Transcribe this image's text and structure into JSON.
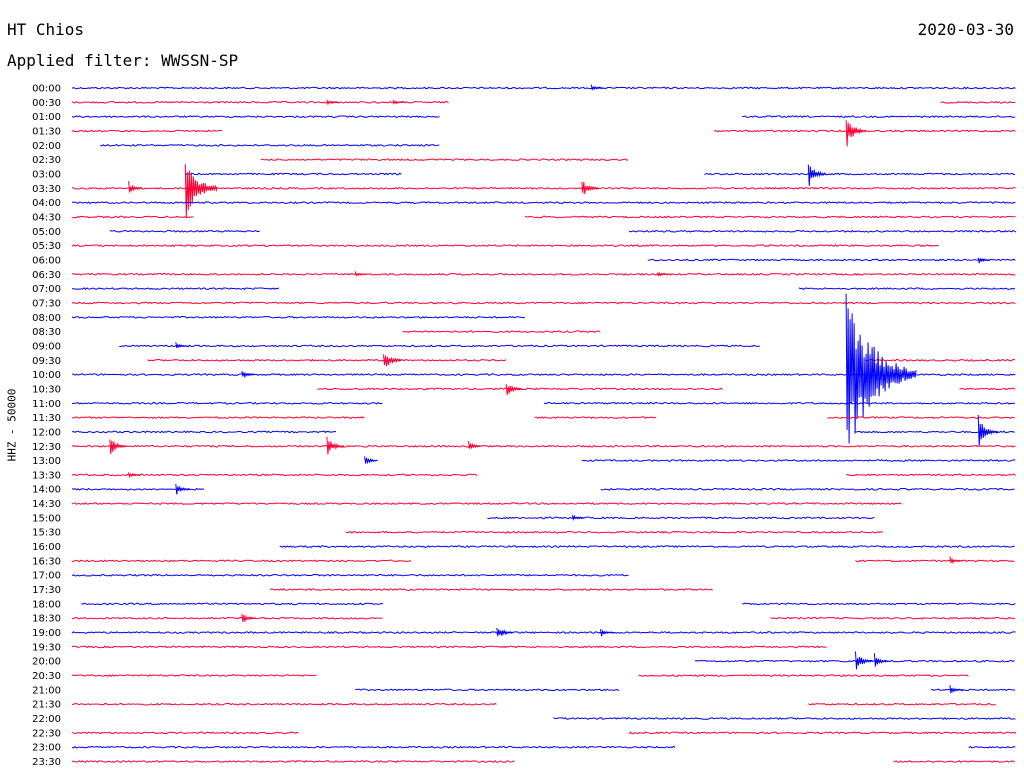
{
  "header": {
    "station": "HT Chios",
    "date": "2020-03-30",
    "filter": "Applied filter: WWSSN-SP"
  },
  "chart_data": {
    "type": "line",
    "title": "HT Chios",
    "subtitle": "Applied filter: WWSSN-SP",
    "ylabel": "HHZ - 50000",
    "xlabel": "",
    "x_range_minutes": [
      0,
      30
    ],
    "grid": false,
    "colors": {
      "even_hour": "#0000ff",
      "half_hour": "#ff0033"
    },
    "rows": [
      {
        "time": "00:00",
        "segments": [
          [
            0.0,
            1.0
          ]
        ],
        "events": [
          {
            "t": 0.55,
            "amp": 4
          }
        ]
      },
      {
        "time": "00:30",
        "segments": [
          [
            0.0,
            0.4
          ],
          [
            0.92,
            1.0
          ]
        ],
        "events": [
          {
            "t": 0.27,
            "amp": 4
          },
          {
            "t": 0.34,
            "amp": 3
          }
        ]
      },
      {
        "time": "01:00",
        "segments": [
          [
            0.0,
            0.39
          ],
          [
            0.71,
            1.0
          ]
        ],
        "events": []
      },
      {
        "time": "01:30",
        "segments": [
          [
            0.0,
            0.16
          ],
          [
            0.68,
            1.0
          ]
        ],
        "events": [
          {
            "t": 0.82,
            "amp": 18
          }
        ]
      },
      {
        "time": "02:00",
        "segments": [
          [
            0.03,
            0.39
          ]
        ],
        "events": []
      },
      {
        "time": "02:30",
        "segments": [
          [
            0.2,
            0.59
          ]
        ],
        "events": []
      },
      {
        "time": "03:00",
        "segments": [
          [
            0.12,
            0.35
          ],
          [
            0.67,
            1.0
          ]
        ],
        "events": [
          {
            "t": 0.78,
            "amp": 14
          }
        ]
      },
      {
        "time": "03:30",
        "segments": [
          [
            0.0,
            1.0
          ]
        ],
        "events": [
          {
            "t": 0.06,
            "amp": 8
          },
          {
            "t": 0.12,
            "amp": 38
          },
          {
            "t": 0.54,
            "amp": 12
          }
        ]
      },
      {
        "time": "04:00",
        "segments": [
          [
            0.0,
            1.0
          ]
        ],
        "events": []
      },
      {
        "time": "04:30",
        "segments": [
          [
            0.0,
            0.13
          ],
          [
            0.48,
            1.0
          ]
        ],
        "events": []
      },
      {
        "time": "05:00",
        "segments": [
          [
            0.04,
            0.2
          ],
          [
            0.59,
            1.0
          ]
        ],
        "events": []
      },
      {
        "time": "05:30",
        "segments": [
          [
            0.0,
            0.92
          ]
        ],
        "events": []
      },
      {
        "time": "06:00",
        "segments": [
          [
            0.61,
            1.0
          ]
        ],
        "events": [
          {
            "t": 0.96,
            "amp": 4
          }
        ]
      },
      {
        "time": "06:30",
        "segments": [
          [
            0.0,
            1.0
          ]
        ],
        "events": [
          {
            "t": 0.3,
            "amp": 3
          },
          {
            "t": 0.62,
            "amp": 3
          }
        ]
      },
      {
        "time": "07:00",
        "segments": [
          [
            0.0,
            0.22
          ],
          [
            0.77,
            1.0
          ]
        ],
        "events": []
      },
      {
        "time": "07:30",
        "segments": [
          [
            0.0,
            1.0
          ]
        ],
        "events": []
      },
      {
        "time": "08:00",
        "segments": [
          [
            0.0,
            0.48
          ]
        ],
        "events": []
      },
      {
        "time": "08:30",
        "segments": [
          [
            0.35,
            0.56
          ]
        ],
        "events": []
      },
      {
        "time": "09:00",
        "segments": [
          [
            0.05,
            0.73
          ]
        ],
        "events": [
          {
            "t": 0.11,
            "amp": 4
          }
        ]
      },
      {
        "time": "09:30",
        "segments": [
          [
            0.08,
            0.46
          ],
          [
            0.84,
            1.0
          ]
        ],
        "events": [
          {
            "t": 0.33,
            "amp": 14
          }
        ]
      },
      {
        "time": "10:00",
        "segments": [
          [
            0.0,
            1.0
          ]
        ],
        "events": [
          {
            "t": 0.18,
            "amp": 5
          },
          {
            "t": 0.82,
            "amp": 110
          }
        ]
      },
      {
        "time": "10:30",
        "segments": [
          [
            0.26,
            0.69
          ],
          [
            0.94,
            1.0
          ]
        ],
        "events": [
          {
            "t": 0.46,
            "amp": 10
          }
        ]
      },
      {
        "time": "11:00",
        "segments": [
          [
            0.0,
            0.33
          ],
          [
            0.5,
            1.0
          ]
        ],
        "events": []
      },
      {
        "time": "11:30",
        "segments": [
          [
            0.0,
            0.31
          ],
          [
            0.49,
            0.62
          ],
          [
            0.8,
            1.0
          ]
        ],
        "events": []
      },
      {
        "time": "12:00",
        "segments": [
          [
            0.0,
            0.28
          ],
          [
            0.83,
            1.0
          ]
        ],
        "events": [
          {
            "t": 0.96,
            "amp": 18
          }
        ]
      },
      {
        "time": "12:30",
        "segments": [
          [
            0.0,
            1.0
          ]
        ],
        "events": [
          {
            "t": 0.04,
            "amp": 12
          },
          {
            "t": 0.27,
            "amp": 12
          },
          {
            "t": 0.42,
            "amp": 6
          }
        ]
      },
      {
        "time": "13:00",
        "segments": [
          [
            0.54,
            1.0
          ]
        ],
        "events": [
          {
            "t": 0.31,
            "amp": 6
          }
        ]
      },
      {
        "time": "13:30",
        "segments": [
          [
            0.0,
            0.43
          ],
          [
            0.82,
            1.0
          ]
        ],
        "events": [
          {
            "t": 0.06,
            "amp": 4
          }
        ]
      },
      {
        "time": "14:00",
        "segments": [
          [
            0.0,
            0.14
          ],
          [
            0.56,
            1.0
          ]
        ],
        "events": [
          {
            "t": 0.11,
            "amp": 7
          }
        ]
      },
      {
        "time": "14:30",
        "segments": [
          [
            0.0,
            0.88
          ]
        ],
        "events": []
      },
      {
        "time": "15:00",
        "segments": [
          [
            0.44,
            0.85
          ]
        ],
        "events": [
          {
            "t": 0.53,
            "amp": 4
          }
        ]
      },
      {
        "time": "15:30",
        "segments": [
          [
            0.29,
            0.86
          ]
        ],
        "events": []
      },
      {
        "time": "16:00",
        "segments": [
          [
            0.22,
            1.0
          ]
        ],
        "events": []
      },
      {
        "time": "16:30",
        "segments": [
          [
            0.0,
            0.36
          ],
          [
            0.83,
            1.0
          ]
        ],
        "events": [
          {
            "t": 0.93,
            "amp": 5
          }
        ]
      },
      {
        "time": "17:00",
        "segments": [
          [
            0.0,
            0.59
          ]
        ],
        "events": []
      },
      {
        "time": "17:30",
        "segments": [
          [
            0.21,
            0.68
          ]
        ],
        "events": []
      },
      {
        "time": "18:00",
        "segments": [
          [
            0.01,
            0.33
          ],
          [
            0.71,
            1.0
          ]
        ],
        "events": []
      },
      {
        "time": "18:30",
        "segments": [
          [
            0.0,
            0.33
          ],
          [
            0.74,
            1.0
          ]
        ],
        "events": [
          {
            "t": 0.18,
            "amp": 8
          }
        ]
      },
      {
        "time": "19:00",
        "segments": [
          [
            0.0,
            1.0
          ]
        ],
        "events": [
          {
            "t": 0.45,
            "amp": 10
          },
          {
            "t": 0.56,
            "amp": 5
          }
        ]
      },
      {
        "time": "19:30",
        "segments": [
          [
            0.0,
            0.8
          ]
        ],
        "events": []
      },
      {
        "time": "20:00",
        "segments": [
          [
            0.66,
            1.0
          ]
        ],
        "events": [
          {
            "t": 0.83,
            "amp": 12
          },
          {
            "t": 0.85,
            "amp": 8
          }
        ]
      },
      {
        "time": "20:30",
        "segments": [
          [
            0.0,
            0.26
          ],
          [
            0.6,
            0.95
          ]
        ],
        "events": []
      },
      {
        "time": "21:00",
        "segments": [
          [
            0.3,
            0.58
          ],
          [
            0.91,
            1.0
          ]
        ],
        "events": [
          {
            "t": 0.93,
            "amp": 5
          }
        ]
      },
      {
        "time": "21:30",
        "segments": [
          [
            0.0,
            0.45
          ],
          [
            0.78,
            0.98
          ]
        ],
        "events": []
      },
      {
        "time": "22:00",
        "segments": [
          [
            0.51,
            1.0
          ]
        ],
        "events": []
      },
      {
        "time": "22:30",
        "segments": [
          [
            0.0,
            0.24
          ],
          [
            0.59,
            1.0
          ]
        ],
        "events": []
      },
      {
        "time": "23:00",
        "segments": [
          [
            0.0,
            0.64
          ],
          [
            0.95,
            1.0
          ]
        ],
        "events": []
      },
      {
        "time": "23:30",
        "segments": [
          [
            0.0,
            0.47
          ],
          [
            0.87,
            1.0
          ]
        ],
        "events": []
      }
    ]
  }
}
